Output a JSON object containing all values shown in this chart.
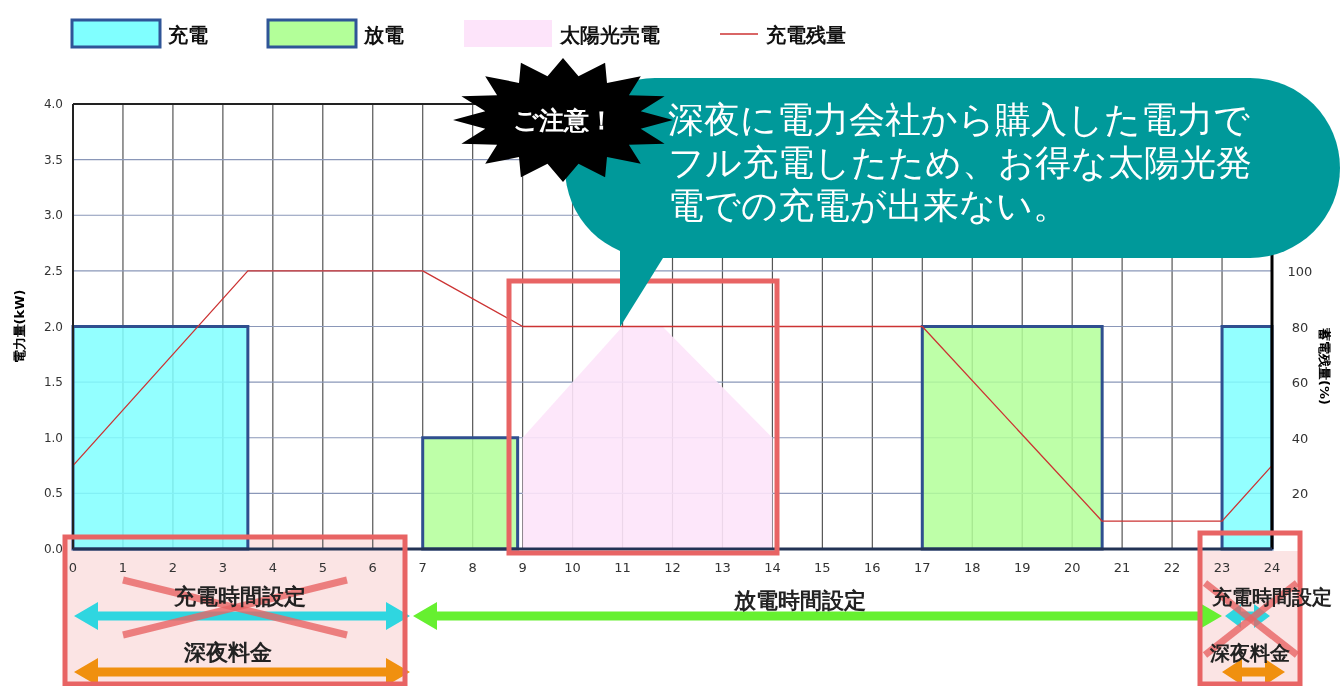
{
  "chart_data": {
    "type": "histogram",
    "ylabel": "電力量(kW)",
    "y2label": "蓄電残量(%)",
    "bins": [
      0,
      3.5,
      7,
      8.9,
      17,
      20.6,
      23,
      24
    ],
    "series": [
      {
        "name": "充電",
        "color": "#80ffff",
        "values": [
          2.0,
          null,
          null,
          null,
          null,
          null,
          2.0
        ]
      },
      {
        "name": "放電",
        "color": "#b3ff99",
        "values": [
          null,
          null,
          1.0,
          null,
          2.0,
          null,
          null
        ]
      },
      {
        "name": "太陽光売電",
        "type": "area",
        "color": "#fde4fa",
        "x": [
          9,
          11,
          11.8,
          14
        ],
        "values": [
          1.0,
          2.0,
          2.0,
          1.0
        ]
      },
      {
        "name": "充電残量",
        "type": "line",
        "axis": "y2",
        "color": "#cc3333",
        "x": [
          0,
          3.5,
          7,
          9,
          17,
          20.6,
          23,
          24
        ],
        "values": [
          30,
          100,
          100,
          80,
          80,
          10,
          10,
          30
        ]
      }
    ],
    "xlim": [
      0,
      24
    ],
    "xticks": [
      0,
      1,
      2,
      3,
      4,
      5,
      6,
      7,
      8,
      9,
      10,
      11,
      12,
      13,
      14,
      15,
      16,
      17,
      18,
      19,
      20,
      21,
      22,
      23,
      24
    ],
    "ylim": [
      0,
      4
    ],
    "yticks": [
      {
        "value": 0,
        "label": "0.0"
      },
      0.5,
      {
        "value": 1,
        "label": "1.0"
      },
      1.5,
      {
        "value": 2,
        "label": "2.0"
      },
      2.5,
      {
        "value": 3,
        "label": "3.0"
      },
      3.5,
      {
        "value": 4,
        "label": "4.0"
      }
    ],
    "y2lim": [
      0,
      160
    ],
    "y2ticks": [
      20,
      40,
      60,
      80,
      100
    ],
    "grid": true,
    "legend": "top",
    "annotations": [
      "ご注意！",
      "深夜に電力会社から購入した電力でフル充電したため、お得な太陽光発電での充電が出来ない。",
      "充電時間設定",
      "放電時間設定",
      "充電時間設定",
      "深夜料金",
      "深夜料金"
    ]
  }
}
